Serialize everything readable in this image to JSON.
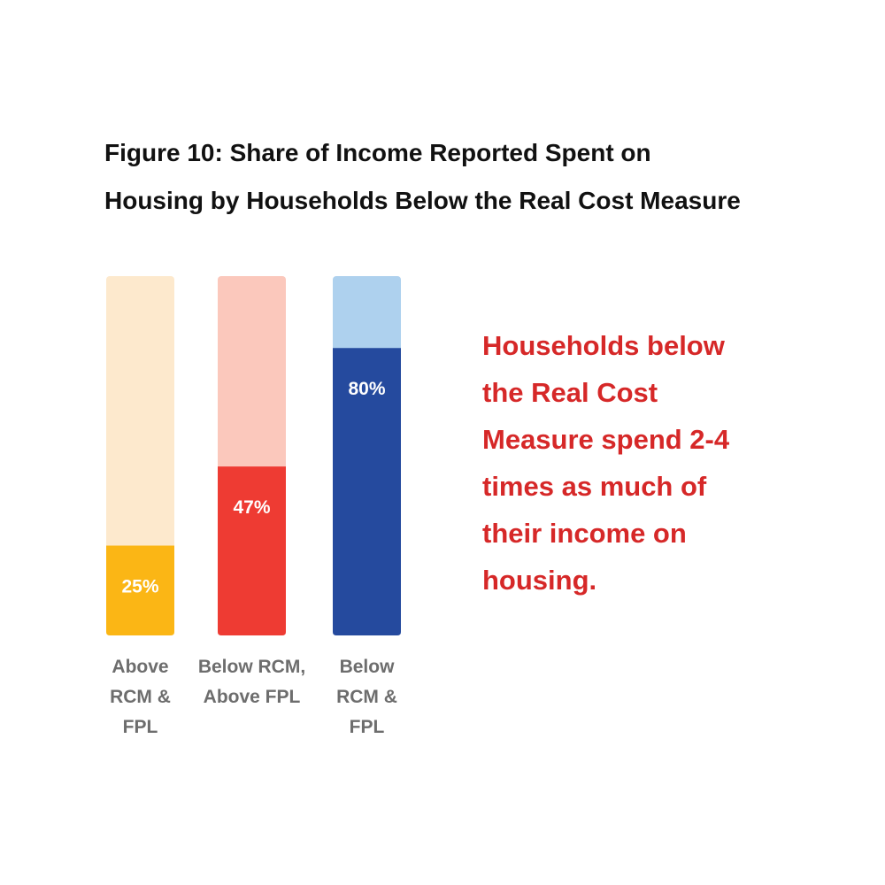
{
  "title_lines": [
    "Figure 10: Share of Income Reported Spent on",
    "Housing by Households Below the Real Cost Measure"
  ],
  "callout": {
    "lines": [
      "Households below",
      "the Real Cost",
      "Measure spend 2-4",
      "times as much of",
      "their income on",
      "housing."
    ],
    "color": "#d62828"
  },
  "chart_data": {
    "type": "bar",
    "title": "Figure 10: Share of Income Reported Spent on Housing by Households Below the Real Cost Measure",
    "categories": [
      [
        "Above",
        "RCM &",
        "FPL"
      ],
      [
        "Below RCM,",
        "Above FPL"
      ],
      [
        "Below",
        "RCM &",
        "FPL"
      ]
    ],
    "values": [
      25,
      47,
      80
    ],
    "value_labels": [
      "25%",
      "47%",
      "80%"
    ],
    "ylim": [
      0,
      100
    ],
    "colors": [
      "#fbb615",
      "#ee3b33",
      "#254a9e"
    ],
    "background_colors": [
      "#fde9cd",
      "#fbc8bc",
      "#aed1ee"
    ],
    "label_color": "#6d6d6d",
    "grid": false,
    "legend": "none"
  }
}
